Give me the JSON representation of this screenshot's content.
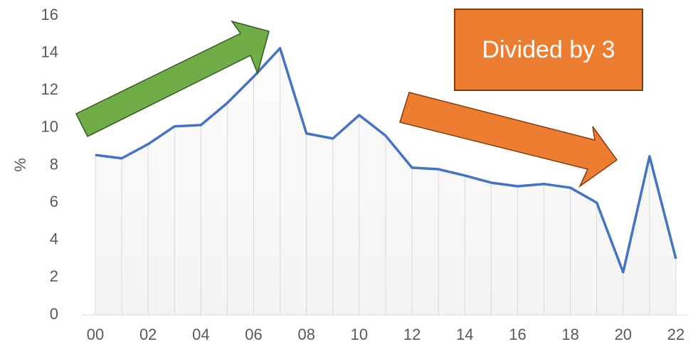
{
  "chart_data": {
    "type": "line",
    "y_label": "%",
    "annotation": "Divided by 3",
    "categories": [
      "00",
      null,
      "02",
      null,
      "04",
      null,
      "06",
      null,
      "08",
      null,
      "10",
      null,
      "12",
      null,
      "14",
      null,
      "16",
      null,
      "18",
      null,
      "20",
      null,
      "22"
    ],
    "series": [
      {
        "name": "%",
        "color": "#4472c4",
        "values": [
          8.55,
          8.37,
          9.13,
          10.08,
          10.15,
          11.33,
          12.74,
          14.26,
          9.7,
          9.43,
          10.68,
          9.58,
          7.87,
          7.79,
          7.45,
          7.07,
          6.88,
          7.0,
          6.8,
          6.0,
          2.28,
          8.48,
          3.0
        ]
      }
    ],
    "ylim": [
      0,
      16
    ],
    "yticks": [
      0,
      2,
      4,
      6,
      8,
      10,
      12,
      14,
      16
    ]
  }
}
